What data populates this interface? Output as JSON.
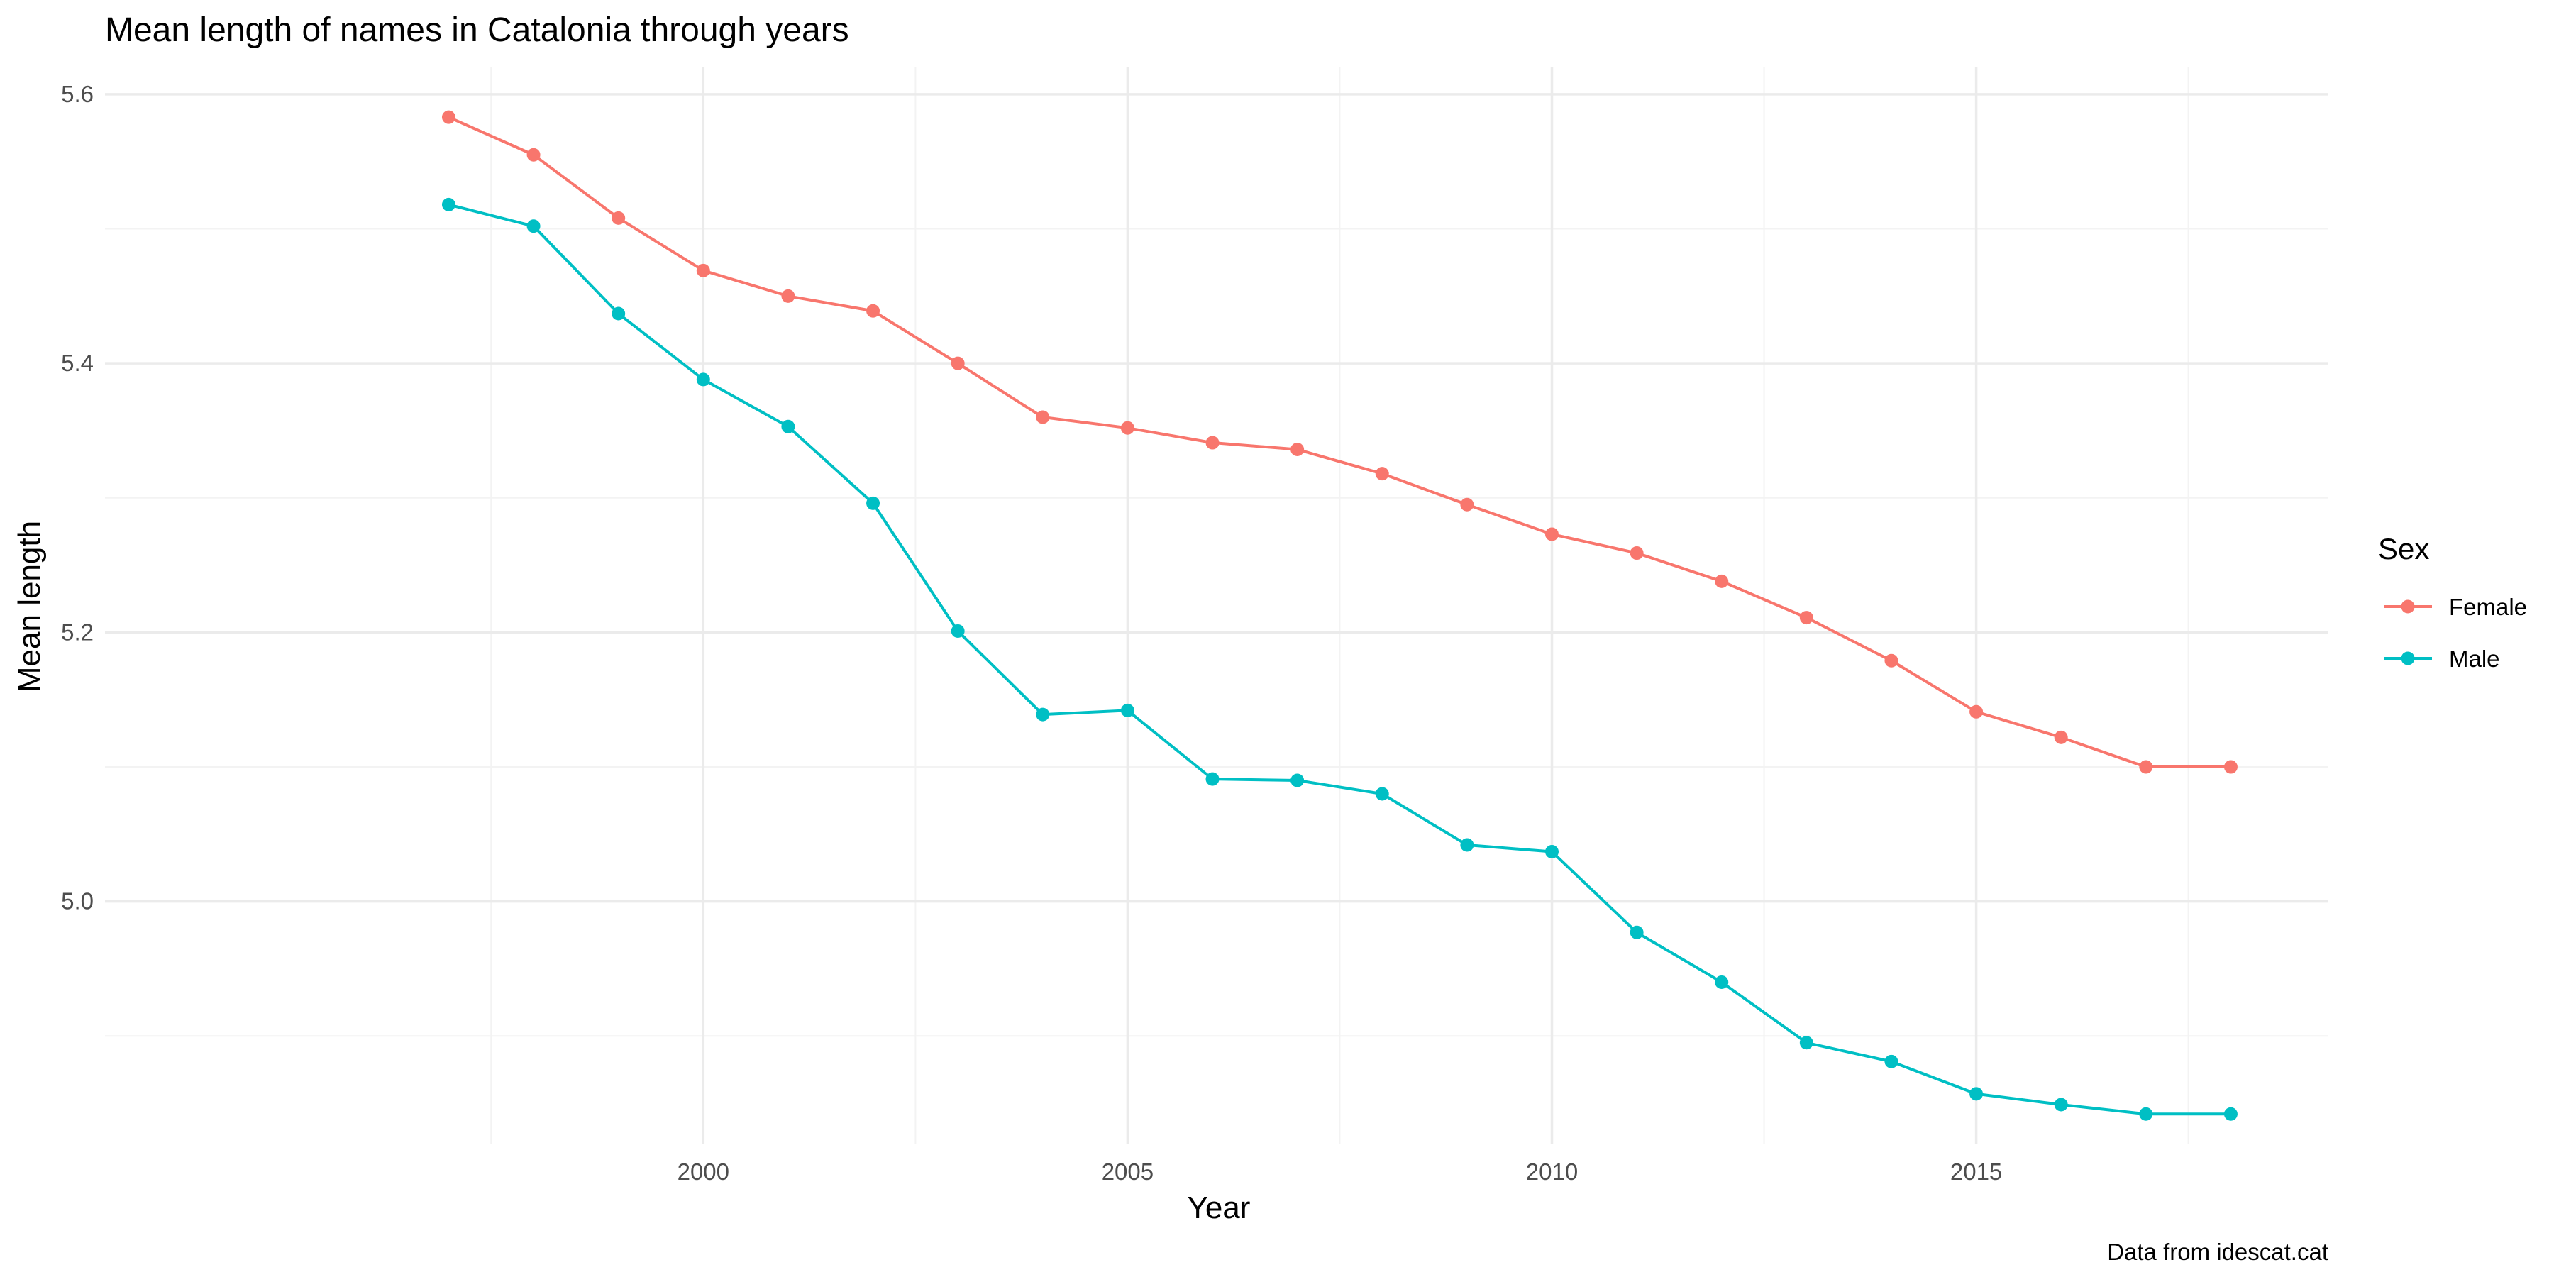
{
  "chart_data": {
    "type": "line",
    "title": "Mean length of names in Catalonia through years",
    "xlabel": "Year",
    "ylabel": "Mean length",
    "caption": "Data from idescat.cat",
    "x": [
      1997,
      1998,
      1999,
      2000,
      2001,
      2002,
      2003,
      2004,
      2005,
      2006,
      2007,
      2008,
      2009,
      2010,
      2011,
      2012,
      2013,
      2014,
      2015,
      2016,
      2017,
      2018
    ],
    "xlim": [
      1992.95,
      2019.15
    ],
    "ylim": [
      4.82,
      5.62
    ],
    "x_ticks": [
      2000,
      2005,
      2010,
      2015
    ],
    "y_ticks": [
      5.0,
      5.2,
      5.4,
      5.6
    ],
    "x_tick_labels": [
      "2000",
      "2005",
      "2010",
      "2015"
    ],
    "y_tick_labels": [
      "5.0",
      "5.2",
      "5.4",
      "5.6"
    ],
    "x_minor_ticks": [
      1997.5,
      2002.5,
      2007.5,
      2012.5,
      2017.5
    ],
    "y_minor_ticks": [
      4.9,
      5.1,
      5.3,
      5.5
    ],
    "grid": true,
    "legend": {
      "title": "Sex",
      "position": "right"
    },
    "series": [
      {
        "name": "Female",
        "color": "#F8766D",
        "values": [
          5.583,
          5.555,
          5.508,
          5.469,
          5.45,
          5.439,
          5.4,
          5.36,
          5.352,
          5.341,
          5.336,
          5.318,
          5.295,
          5.273,
          5.259,
          5.238,
          5.211,
          5.179,
          5.141,
          5.122,
          5.1,
          5.1
        ]
      },
      {
        "name": "Male",
        "color": "#00BFC4",
        "values": [
          5.518,
          5.502,
          5.437,
          5.388,
          5.353,
          5.296,
          5.201,
          5.139,
          5.142,
          5.091,
          5.09,
          5.08,
          5.042,
          5.037,
          4.977,
          4.94,
          4.895,
          4.881,
          4.857,
          4.849,
          4.842,
          4.842
        ]
      }
    ]
  }
}
